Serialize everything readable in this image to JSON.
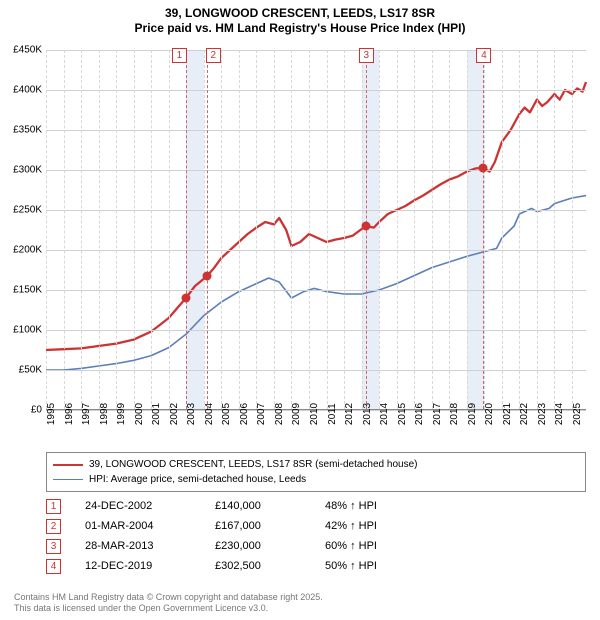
{
  "title": {
    "line1": "39, LONGWOOD CRESCENT, LEEDS, LS17 8SR",
    "line2": "Price paid vs. HM Land Registry's House Price Index (HPI)"
  },
  "title_fontsize": 12,
  "chart": {
    "type": "line",
    "background_color": "#ffffff",
    "grid_color": "#d0d0d0",
    "x_domain": [
      1995,
      2025.8
    ],
    "y_domain": [
      0,
      450000
    ],
    "y_ticks": [
      0,
      50000,
      100000,
      150000,
      200000,
      250000,
      300000,
      350000,
      400000,
      450000
    ],
    "y_tick_labels": [
      "£0",
      "£50K",
      "£100K",
      "£150K",
      "£200K",
      "£250K",
      "£300K",
      "£350K",
      "£400K",
      "£450K"
    ],
    "x_ticks": [
      1995,
      1996,
      1997,
      1998,
      1999,
      2000,
      2001,
      2002,
      2003,
      2004,
      2005,
      2006,
      2007,
      2008,
      2009,
      2010,
      2011,
      2012,
      2013,
      2014,
      2015,
      2016,
      2017,
      2018,
      2019,
      2020,
      2021,
      2022,
      2023,
      2024,
      2025
    ],
    "shaded_years": [
      2003,
      2013,
      2019
    ],
    "series": [
      {
        "name": "price_paid",
        "label": "39, LONGWOOD CRESCENT, LEEDS, LS17 8SR (semi-detached house)",
        "color": "#cc3333",
        "line_width": 2.3,
        "points": [
          [
            1995,
            75000
          ],
          [
            1996,
            76000
          ],
          [
            1997,
            77000
          ],
          [
            1998,
            80000
          ],
          [
            1999,
            83000
          ],
          [
            2000,
            88000
          ],
          [
            2001,
            98000
          ],
          [
            2002,
            115000
          ],
          [
            2002.98,
            140000
          ],
          [
            2003.5,
            155000
          ],
          [
            2004.17,
            167000
          ],
          [
            2004.6,
            178000
          ],
          [
            2005,
            190000
          ],
          [
            2005.5,
            200000
          ],
          [
            2006,
            210000
          ],
          [
            2006.5,
            220000
          ],
          [
            2007,
            228000
          ],
          [
            2007.5,
            235000
          ],
          [
            2008,
            232000
          ],
          [
            2008.3,
            240000
          ],
          [
            2008.7,
            225000
          ],
          [
            2009,
            205000
          ],
          [
            2009.5,
            210000
          ],
          [
            2010,
            220000
          ],
          [
            2010.5,
            215000
          ],
          [
            2011,
            210000
          ],
          [
            2011.5,
            213000
          ],
          [
            2012,
            215000
          ],
          [
            2012.5,
            218000
          ],
          [
            2013.24,
            230000
          ],
          [
            2013.7,
            228000
          ],
          [
            2014,
            235000
          ],
          [
            2014.5,
            245000
          ],
          [
            2015,
            250000
          ],
          [
            2015.5,
            255000
          ],
          [
            2016,
            262000
          ],
          [
            2016.5,
            268000
          ],
          [
            2017,
            275000
          ],
          [
            2017.5,
            282000
          ],
          [
            2018,
            288000
          ],
          [
            2018.5,
            292000
          ],
          [
            2019,
            298000
          ],
          [
            2019.5,
            302000
          ],
          [
            2019.95,
            302500
          ],
          [
            2020.3,
            298000
          ],
          [
            2020.6,
            310000
          ],
          [
            2021,
            335000
          ],
          [
            2021.5,
            350000
          ],
          [
            2022,
            370000
          ],
          [
            2022.3,
            378000
          ],
          [
            2022.6,
            372000
          ],
          [
            2023,
            388000
          ],
          [
            2023.3,
            380000
          ],
          [
            2023.6,
            385000
          ],
          [
            2024,
            395000
          ],
          [
            2024.3,
            388000
          ],
          [
            2024.6,
            400000
          ],
          [
            2025,
            395000
          ],
          [
            2025.3,
            402000
          ],
          [
            2025.6,
            398000
          ],
          [
            2025.8,
            410000
          ]
        ]
      },
      {
        "name": "hpi",
        "label": "HPI: Average price, semi-detached house, Leeds",
        "color": "#5b7fb8",
        "line_width": 1.6,
        "points": [
          [
            1995,
            50000
          ],
          [
            1996,
            50000
          ],
          [
            1997,
            52000
          ],
          [
            1998,
            55000
          ],
          [
            1999,
            58000
          ],
          [
            2000,
            62000
          ],
          [
            2001,
            68000
          ],
          [
            2002,
            78000
          ],
          [
            2003,
            95000
          ],
          [
            2004,
            118000
          ],
          [
            2005,
            135000
          ],
          [
            2006,
            148000
          ],
          [
            2007,
            158000
          ],
          [
            2007.7,
            165000
          ],
          [
            2008.3,
            160000
          ],
          [
            2009,
            140000
          ],
          [
            2009.7,
            148000
          ],
          [
            2010.3,
            152000
          ],
          [
            2011,
            148000
          ],
          [
            2012,
            145000
          ],
          [
            2013,
            145000
          ],
          [
            2014,
            150000
          ],
          [
            2015,
            158000
          ],
          [
            2016,
            168000
          ],
          [
            2017,
            178000
          ],
          [
            2018,
            185000
          ],
          [
            2019,
            192000
          ],
          [
            2020,
            198000
          ],
          [
            2020.7,
            202000
          ],
          [
            2021,
            215000
          ],
          [
            2021.7,
            230000
          ],
          [
            2022,
            245000
          ],
          [
            2022.7,
            252000
          ],
          [
            2023,
            248000
          ],
          [
            2023.7,
            252000
          ],
          [
            2024,
            258000
          ],
          [
            2024.7,
            263000
          ],
          [
            2025,
            265000
          ],
          [
            2025.8,
            268000
          ]
        ]
      }
    ],
    "markers": [
      {
        "n": "1",
        "x": 2002.98,
        "y": 140000
      },
      {
        "n": "2",
        "x": 2004.17,
        "y": 167000
      },
      {
        "n": "3",
        "x": 2013.24,
        "y": 230000
      },
      {
        "n": "4",
        "x": 2019.95,
        "y": 302500
      }
    ]
  },
  "legend": {
    "rows": [
      {
        "color": "#cc3333",
        "label": "39, LONGWOOD CRESCENT, LEEDS, LS17 8SR (semi-detached house)",
        "width": 2.3
      },
      {
        "color": "#5b7fb8",
        "label": "HPI: Average price, semi-detached house, Leeds",
        "width": 1.6
      }
    ]
  },
  "sales": [
    {
      "n": "1",
      "date": "24-DEC-2002",
      "price": "£140,000",
      "pct": "48% ↑ HPI"
    },
    {
      "n": "2",
      "date": "01-MAR-2004",
      "price": "£167,000",
      "pct": "42% ↑ HPI"
    },
    {
      "n": "3",
      "date": "28-MAR-2013",
      "price": "£230,000",
      "pct": "60% ↑ HPI"
    },
    {
      "n": "4",
      "date": "12-DEC-2019",
      "price": "£302,500",
      "pct": "50% ↑ HPI"
    }
  ],
  "footer": {
    "line1": "Contains HM Land Registry data © Crown copyright and database right 2025.",
    "line2": "This data is licensed under the Open Government Licence v3.0."
  },
  "colors": {
    "marker_border": "#cc3333",
    "marker_dashed": "#cc6666",
    "shade": "#e8eef8",
    "footer_text": "#777777"
  }
}
